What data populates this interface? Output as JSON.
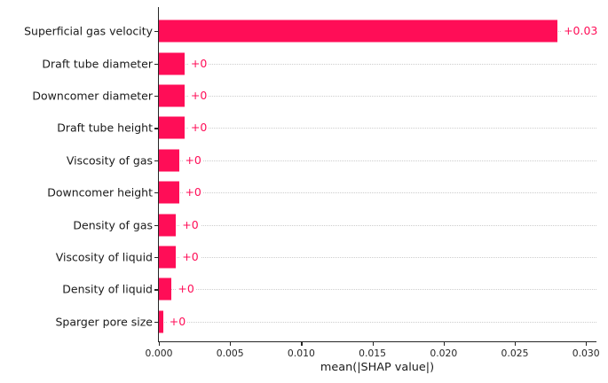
{
  "figure": {
    "background": "#ffffff",
    "axis_color": "#262626",
    "grid_color": "#cdcdcd",
    "text_color": "#1a1a1a"
  },
  "chart_data": {
    "type": "bar",
    "orientation": "horizontal",
    "title": "",
    "xlabel": "mean(|SHAP value|)",
    "ylabel": "",
    "categories": [
      "Superficial gas velocity",
      "Draft tube diameter",
      "Downcomer diameter",
      "Draft tube height",
      "Viscosity of gas",
      "Downcomer height",
      "Density of gas",
      "Viscosity of liquid",
      "Density of liquid",
      "Sparger pore size"
    ],
    "values": [
      0.028,
      0.0018,
      0.0018,
      0.0018,
      0.0014,
      0.0014,
      0.0012,
      0.0012,
      0.0009,
      0.0003
    ],
    "bar_labels": [
      "+0.03",
      "+0",
      "+0",
      "+0",
      "+0",
      "+0",
      "+0",
      "+0",
      "+0",
      "+0"
    ],
    "bar_color": "#ff0d57",
    "xlim": [
      0,
      0.0308
    ],
    "x_ticks": [
      0.0,
      0.005,
      0.01,
      0.015,
      0.02,
      0.025,
      0.03
    ],
    "x_tick_labels": [
      "0.000",
      "0.005",
      "0.010",
      "0.015",
      "0.020",
      "0.025",
      "0.030"
    ],
    "grid": "horizontal dotted row guides",
    "legend": "none"
  }
}
